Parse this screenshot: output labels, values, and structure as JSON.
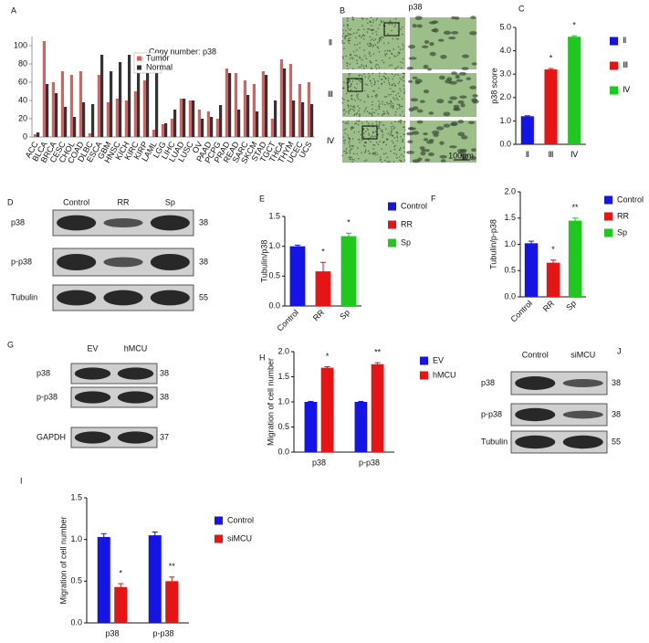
{
  "chart_data": [
    {
      "type": "bar",
      "label": "A",
      "title": "Copy number:   p38",
      "categories": [
        "ACC",
        "BLCA",
        "BRCA",
        "CESC",
        "CHOL",
        "COAD",
        "DLBC",
        "ESCA",
        "GBM",
        "HNSC",
        "KICH",
        "KIRC",
        "KIRP",
        "LAML",
        "LGG",
        "LIHC",
        "LUAD",
        "LUSC",
        "OV",
        "PAAD",
        "PCPG",
        "PRAD",
        "READ",
        "SARC",
        "SKCM",
        "STAD",
        "TGCT",
        "THCA",
        "THYM",
        "UCEC",
        "UCS"
      ],
      "series": [
        {
          "name": "Tumor",
          "color": "#e8595a",
          "values": [
            3,
            105,
            60,
            72,
            68,
            72,
            4,
            68,
            38,
            42,
            40,
            50,
            62,
            8,
            14,
            20,
            42,
            40,
            30,
            28,
            20,
            75,
            70,
            62,
            58,
            72,
            20,
            85,
            80,
            58,
            60
          ]
        },
        {
          "name": "Normal",
          "color": "#333333",
          "values": [
            5,
            58,
            48,
            33,
            22,
            38,
            36,
            90,
            72,
            82,
            90,
            85,
            90,
            88,
            15,
            30,
            42,
            40,
            20,
            22,
            35,
            70,
            30,
            46,
            28,
            68,
            40,
            75,
            40,
            38,
            36
          ]
        }
      ],
      "ylim": [
        0,
        110
      ],
      "yticks": [
        0,
        20,
        40,
        60,
        80,
        100
      ]
    },
    {
      "type": "bar",
      "label": "C",
      "ylabel": "p38 score",
      "categories": [
        "Ⅱ",
        "Ⅲ",
        "Ⅳ"
      ],
      "values": [
        1.2,
        3.2,
        4.6
      ],
      "errors": [
        0.02,
        0.04,
        0.04
      ],
      "colors": [
        "#1414e6",
        "#e61414",
        "#1ec81e"
      ],
      "stars": [
        null,
        "*",
        "*"
      ],
      "ylim": [
        0,
        5
      ],
      "yticks": [
        {
          "value": 0,
          "label": "0.0"
        },
        {
          "value": 1,
          "label": "1.0"
        },
        {
          "value": 2,
          "label": "2.0"
        },
        {
          "value": 3,
          "label": "3.0"
        },
        {
          "value": 4,
          "label": "4.0"
        },
        {
          "value": 5,
          "label": "5.0"
        }
      ]
    },
    {
      "type": "bar",
      "label": "E",
      "ylabel": "Tubulin/p38",
      "categories": [
        "Control",
        "RR",
        "Sp"
      ],
      "values": [
        1.0,
        0.58,
        1.17
      ],
      "errors": [
        0.02,
        0.15,
        0.05
      ],
      "colors": [
        "#1414e6",
        "#e61414",
        "#1ec81e"
      ],
      "stars": [
        null,
        "*",
        "*"
      ],
      "ylim": [
        0,
        1.5
      ],
      "yticks": [
        {
          "value": 0,
          "label": "0.0"
        },
        0.5,
        {
          "value": 1,
          "label": "1.0"
        },
        1.5
      ]
    },
    {
      "type": "bar",
      "label": "F",
      "ylabel": "Tubulin/p-p38",
      "categories": [
        "Control",
        "RR",
        "Sp"
      ],
      "values": [
        1.02,
        0.65,
        1.45
      ],
      "errors": [
        0.04,
        0.05,
        0.05
      ],
      "colors": [
        "#1414e6",
        "#e61414",
        "#1ec81e"
      ],
      "stars": [
        null,
        "*",
        "**"
      ],
      "ylim": [
        0,
        2
      ],
      "yticks": [
        {
          "value": 0,
          "label": "0.0"
        },
        0.5,
        {
          "value": 1,
          "label": "1.0"
        },
        1.5,
        {
          "value": 2,
          "label": "2.0"
        }
      ]
    },
    {
      "type": "bar",
      "label": "H",
      "ylabel": "Migration of cell number",
      "categories": [
        "p38",
        "p-p38"
      ],
      "series": [
        {
          "name": "EV",
          "color": "#1414e6",
          "values": [
            1.0,
            1.0
          ],
          "errors": [
            0.01,
            0.01
          ]
        },
        {
          "name": "hMCU",
          "color": "#e61414",
          "values": [
            1.68,
            1.75
          ],
          "errors": [
            0.02,
            0.03
          ]
        }
      ],
      "stars": [
        "*",
        "**"
      ],
      "ylim": [
        0,
        2
      ],
      "yticks": [
        {
          "value": 0,
          "label": "0.0"
        },
        0.5,
        {
          "value": 1,
          "label": "1.0"
        },
        1.5,
        {
          "value": 2,
          "label": "2.0"
        }
      ]
    },
    {
      "type": "bar",
      "label": "I",
      "ylabel": "Migration of cell number",
      "categories": [
        "p38",
        "p-p38"
      ],
      "series": [
        {
          "name": "Control",
          "color": "#1414e6",
          "values": [
            1.03,
            1.05
          ],
          "errors": [
            0.04,
            0.04
          ]
        },
        {
          "name": "siMCU",
          "color": "#e61414",
          "values": [
            0.43,
            0.5
          ],
          "errors": [
            0.04,
            0.05
          ]
        }
      ],
      "stars": [
        "*",
        "**"
      ],
      "ylim": [
        0,
        1.5
      ],
      "yticks": [
        {
          "value": 0,
          "label": "0.0"
        },
        0.5,
        {
          "value": 1,
          "label": "1.0"
        },
        1.5
      ]
    }
  ],
  "micrograph": {
    "label": "B",
    "title": "p38",
    "rows": [
      "Ⅱ",
      "Ⅲ",
      "Ⅳ"
    ],
    "scale": "100μm"
  },
  "blots": [
    {
      "label": "D",
      "lanes": [
        "Control",
        "RR",
        "Sp"
      ],
      "rows": [
        {
          "name": "p38",
          "kda": 38
        },
        {
          "name": "p-p38",
          "kda": 38
        },
        {
          "name": "Tubulin",
          "kda": 55
        }
      ]
    },
    {
      "label": "G",
      "lanes": [
        "EV",
        "hMCU"
      ],
      "rows": [
        {
          "name": "p38",
          "kda": 38
        },
        {
          "name": "p-p38",
          "kda": 38
        },
        {
          "name": "GAPDH",
          "kda": 37
        }
      ]
    },
    {
      "label": "J",
      "lanes": [
        "Control",
        "siMCU"
      ],
      "rows": [
        {
          "name": "p38",
          "kda": 38
        },
        {
          "name": "p-p38",
          "kda": 38
        },
        {
          "name": "Tubulin",
          "kda": 55
        }
      ]
    }
  ]
}
